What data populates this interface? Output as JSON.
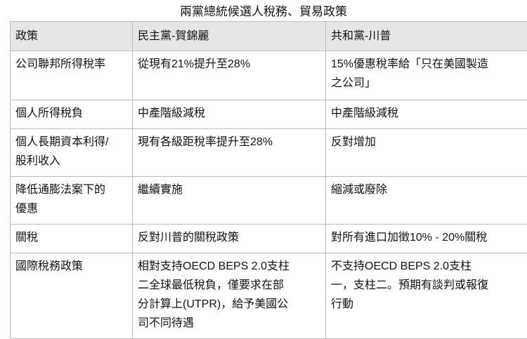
{
  "title": "兩黨總統候選人稅務、貿易政策",
  "headers": [
    "政策",
    "民主黨-賀錦麗",
    "共和黨-川普"
  ],
  "rows": [
    [
      "公司聯邦所得稅率",
      "從現有21%提升至28%",
      "15%優惠稅率給「只在美國製造\n之公司」"
    ],
    [
      "個人所得稅負",
      "中產階級減稅",
      "中產階級減稅"
    ],
    [
      "個人長期資本利得/\n股利收入",
      "現有各級距稅率提升至28%",
      "反對增加"
    ],
    [
      "降低通膨法案下的\n優惠",
      "繼續實施",
      "縮減或廢除"
    ],
    [
      "關稅",
      "反對川普的關稅政策",
      "對所有進口加徵10% - 20%關稅"
    ],
    [
      "國際稅務政策",
      "相對支持OECD BEPS 2.0支柱\n二全球最低稅負，僅要求在部\n分計算上(UTPR)，給予美國公\n司不同待遇",
      "不支持OECD BEPS 2.0支柱\n一，支柱二。預期有談判或報復\n行動"
    ]
  ]
}
